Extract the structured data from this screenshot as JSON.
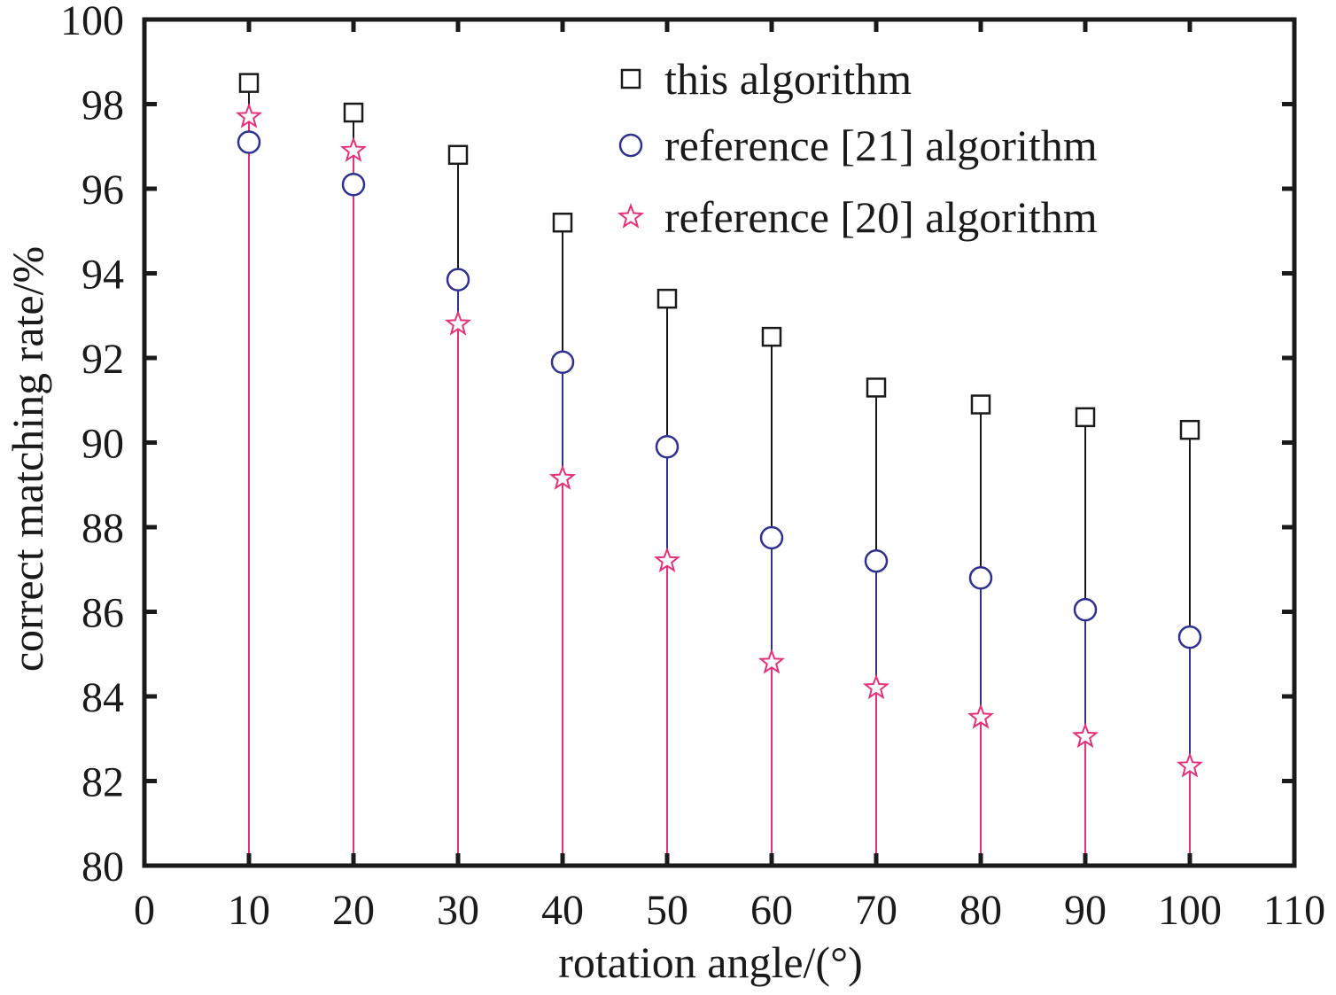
{
  "chart_data": {
    "type": "scatter",
    "style": "stem",
    "xlabel": "rotation angle/(°)",
    "ylabel": "correct matching rate/%",
    "xlim": [
      0,
      110
    ],
    "ylim": [
      80,
      100
    ],
    "xticks": [
      0,
      10,
      20,
      30,
      40,
      50,
      60,
      70,
      80,
      90,
      100,
      110
    ],
    "yticks": [
      80,
      82,
      84,
      86,
      88,
      90,
      92,
      94,
      96,
      98,
      100
    ],
    "grid": false,
    "legend_position": "top-right",
    "x": [
      10,
      20,
      30,
      40,
      50,
      60,
      70,
      80,
      90,
      100
    ],
    "series": [
      {
        "name": "this algorithm",
        "marker": "square",
        "color": "#1a1a1a",
        "values": [
          98.5,
          97.8,
          96.8,
          95.2,
          93.4,
          92.5,
          91.3,
          90.9,
          90.6,
          90.3
        ]
      },
      {
        "name": "reference [21] algorithm",
        "marker": "circle",
        "color": "#2e3192",
        "values": [
          97.1,
          96.1,
          93.85,
          91.9,
          89.9,
          87.75,
          87.2,
          86.8,
          86.05,
          85.4
        ]
      },
      {
        "name": "reference [20] algorithm",
        "marker": "star",
        "color": "#e4317a",
        "values": [
          97.7,
          96.9,
          92.8,
          89.15,
          87.2,
          84.8,
          84.2,
          83.5,
          83.05,
          82.35
        ]
      }
    ]
  }
}
